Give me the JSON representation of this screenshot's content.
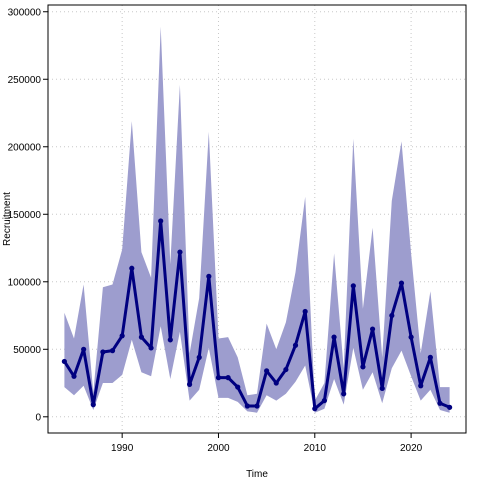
{
  "chart_data": {
    "type": "line",
    "title": "",
    "xlabel": "Time",
    "ylabel": "Recruitment",
    "xlim": [
      1982.3,
      2025.7
    ],
    "ylim": [
      -12000,
      305000
    ],
    "xticks": [
      1990,
      2000,
      2010,
      2020
    ],
    "xtick_labels": [
      "1990",
      "2000",
      "2010",
      "2020"
    ],
    "yticks": [
      0,
      50000,
      100000,
      150000,
      200000,
      250000,
      300000
    ],
    "ytick_labels": [
      "0",
      "50000",
      "100000",
      "150000",
      "200000",
      "250000",
      "300000"
    ],
    "grid": true,
    "legend": "none",
    "series": [
      {
        "x": [
          1984,
          1985,
          1986,
          1987,
          1988,
          1989,
          1990,
          1991,
          1992,
          1993,
          1994,
          1995,
          1996,
          1997,
          1998,
          1999,
          2000,
          2001,
          2002,
          2003,
          2004,
          2005,
          2006,
          2007,
          2008,
          2009,
          2010,
          2011,
          2012,
          2013,
          2014,
          2015,
          2016,
          2017,
          2018,
          2019,
          2020,
          2021,
          2022,
          2023,
          2024
        ],
        "values": [
          41000,
          30000,
          50000,
          9000,
          48000,
          49000,
          60000,
          110000,
          59000,
          51000,
          145000,
          57000,
          122000,
          24000,
          44000,
          104000,
          29000,
          29000,
          22000,
          8000,
          8000,
          34000,
          25000,
          35000,
          53000,
          78000,
          6000,
          12000,
          59000,
          17000,
          97000,
          37000,
          65000,
          21000,
          75000,
          99000,
          59000,
          23000,
          44000,
          10000,
          7000
        ],
        "lower": [
          22000,
          16000,
          23000,
          5000,
          25000,
          25000,
          31000,
          57000,
          33000,
          30000,
          67000,
          28000,
          63000,
          12000,
          20000,
          51000,
          14000,
          14000,
          11000,
          4000,
          3000,
          16000,
          12000,
          17000,
          26000,
          38000,
          3000,
          6000,
          28000,
          9000,
          51000,
          20000,
          33000,
          10000,
          36000,
          49000,
          30000,
          12000,
          20000,
          5000,
          3000
        ],
        "upper": [
          77000,
          58000,
          98000,
          18000,
          96000,
          98000,
          124000,
          219000,
          122000,
          103000,
          289000,
          113000,
          246000,
          47000,
          88000,
          211000,
          58000,
          59000,
          44000,
          16000,
          17000,
          69000,
          50000,
          70000,
          107000,
          163000,
          12000,
          25000,
          121000,
          36000,
          206000,
          80000,
          140000,
          44000,
          160000,
          204000,
          121000,
          47000,
          93000,
          22000,
          22000
        ],
        "line_color": "#000080",
        "band_color": "#9d9dce"
      }
    ]
  }
}
